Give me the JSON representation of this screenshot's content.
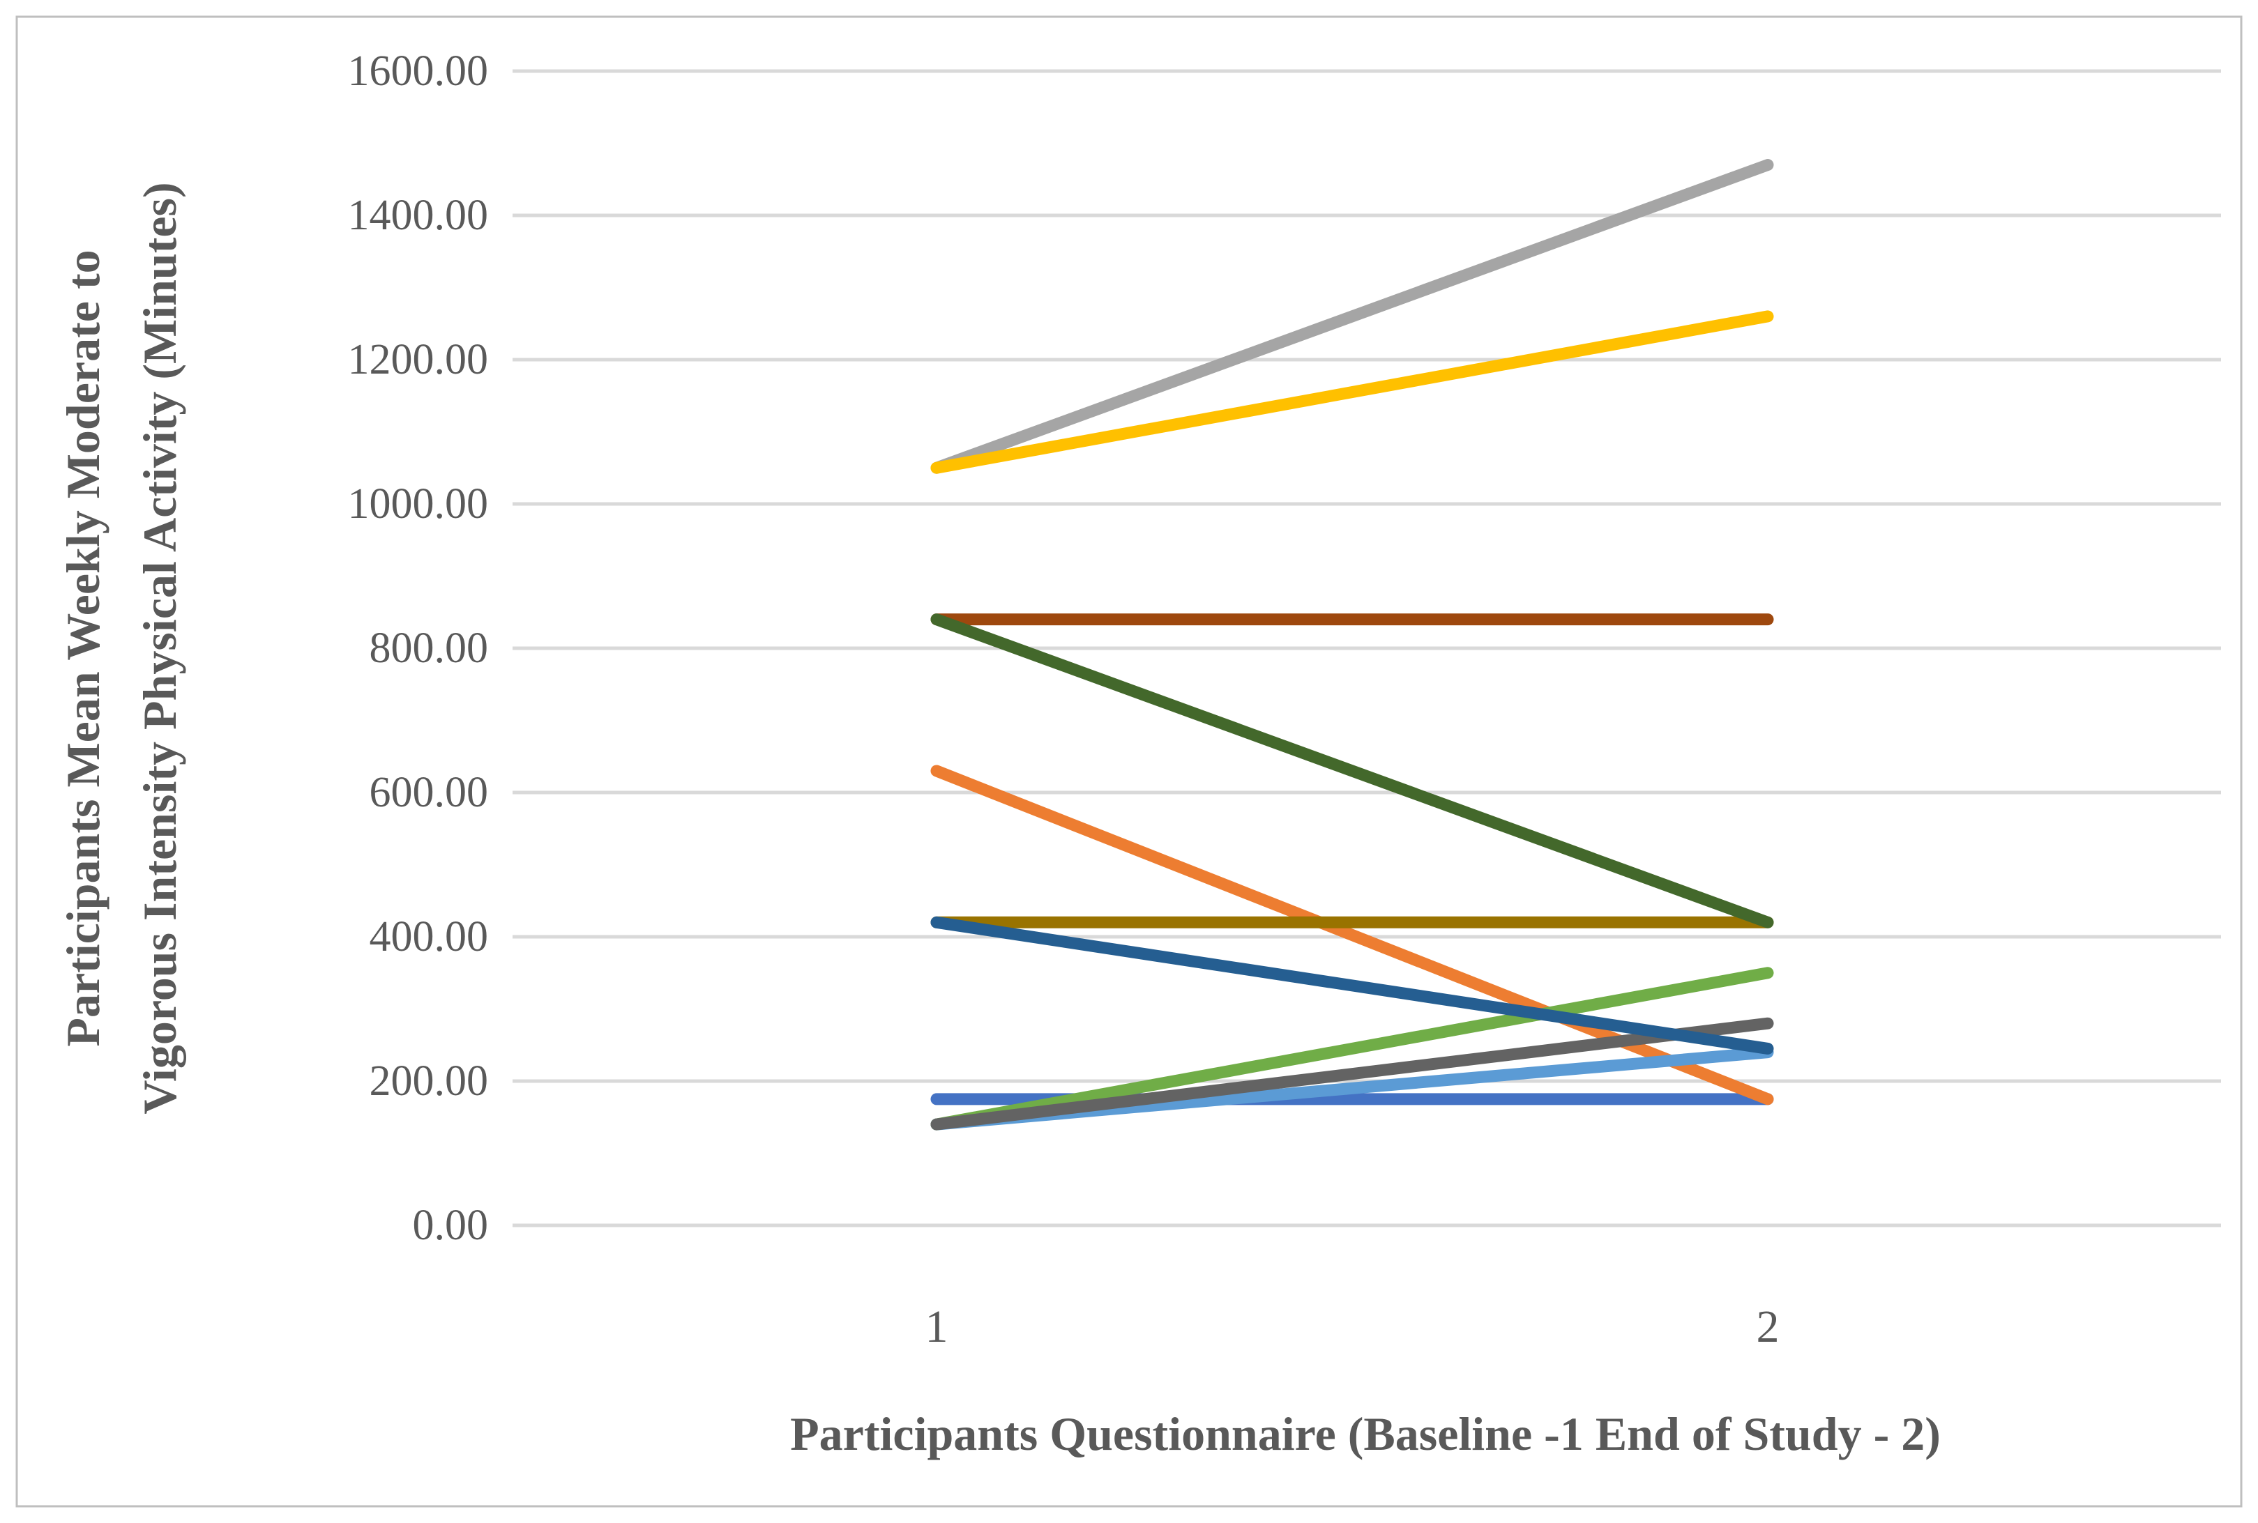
{
  "chart_data": {
    "type": "line",
    "title": "",
    "xlabel": "Participants Questionnaire (Baseline -1 End of Study - 2)",
    "ylabel_line1": "Participants Mean Weekly Moderate to",
    "ylabel_line2": "Vigorous Intensity Physical Activity (Minutes)",
    "x_categories": [
      "1",
      "2"
    ],
    "y_ticks": [
      "0.00",
      "200.00",
      "400.00",
      "600.00",
      "800.00",
      "1000.00",
      "1200.00",
      "1400.00",
      "1600.00"
    ],
    "ylim": [
      0,
      1600
    ],
    "y_tick_step": 200,
    "grid": true,
    "legend_position": "none",
    "axis_text_color": "#595959",
    "gridline_color": "#D9D9D9",
    "frame_border_color": "#BFBFBF",
    "series": [
      {
        "name": "series-1-royal-blue",
        "color": "#4472C4",
        "values": [
          175,
          175
        ]
      },
      {
        "name": "series-2-orange",
        "color": "#ED7D31",
        "values": [
          630,
          175
        ]
      },
      {
        "name": "series-3-gray",
        "color": "#A5A5A5",
        "values": [
          1050,
          1470
        ]
      },
      {
        "name": "series-4-gold",
        "color": "#FFC000",
        "values": [
          1050,
          1260
        ]
      },
      {
        "name": "series-5-light-blue",
        "color": "#5B9BD5",
        "values": [
          140,
          240
        ]
      },
      {
        "name": "series-6-green",
        "color": "#70AD47",
        "values": [
          140,
          350
        ]
      },
      {
        "name": "series-7-brown",
        "color": "#9E480E",
        "values": [
          840,
          840
        ]
      },
      {
        "name": "series-8-dark-gray",
        "color": "#636363",
        "values": [
          140,
          280
        ]
      },
      {
        "name": "series-9-olive",
        "color": "#997300",
        "values": [
          420,
          420
        ]
      },
      {
        "name": "series-10-steel-blue",
        "color": "#255E91",
        "values": [
          420,
          245
        ]
      },
      {
        "name": "series-11-dark-green",
        "color": "#43682B",
        "values": [
          840,
          420
        ]
      }
    ]
  }
}
